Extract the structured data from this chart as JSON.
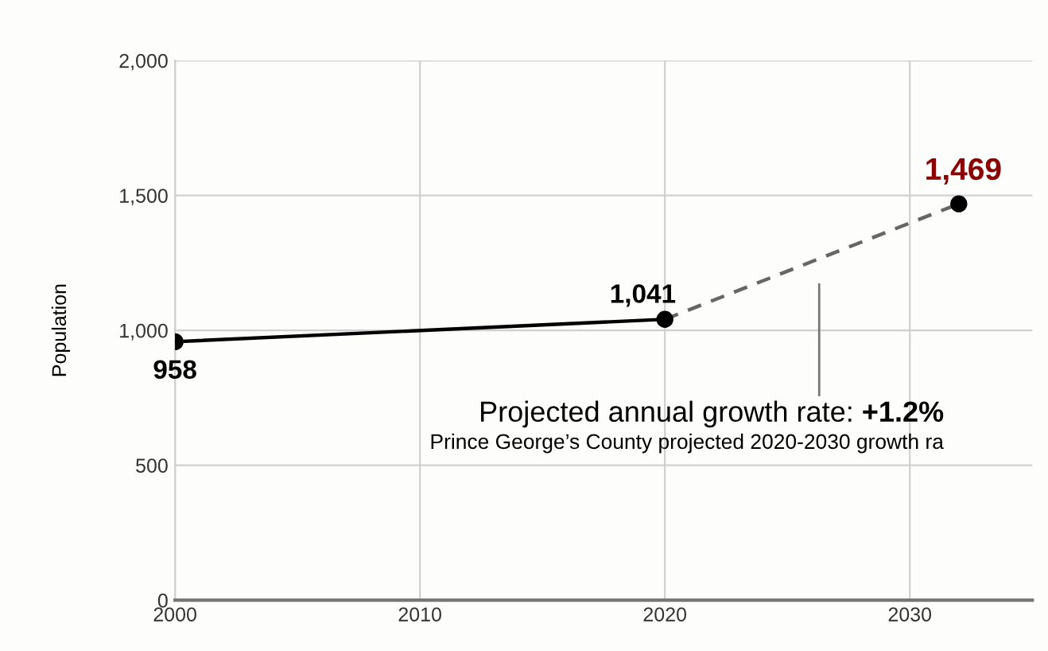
{
  "chart_data": {
    "type": "line",
    "ylabel": "Population",
    "xlim": [
      2000,
      2035
    ],
    "xticks": [
      2000,
      2010,
      2020,
      2030
    ],
    "ylim": [
      0,
      2000
    ],
    "yticks": [
      0,
      {
        "value": 500,
        "label": "500"
      },
      {
        "value": 1000,
        "label": "1,000"
      },
      {
        "value": 1500,
        "label": "1,500"
      },
      {
        "value": 2000,
        "label": "2,000"
      }
    ],
    "grid": true,
    "series": [
      {
        "x": [
          2000,
          2020
        ],
        "values": [
          958,
          1041
        ],
        "color": "#000000",
        "line_style": "solid",
        "marker": "none"
      },
      {
        "x": [
          2020,
          2032
        ],
        "values": [
          1041,
          1469
        ],
        "color": "#666666",
        "line_style": "dashed",
        "marker": "none"
      },
      {
        "type": "scatter",
        "x": [
          2000,
          2020,
          2032
        ],
        "values": [
          958,
          1041,
          1469
        ],
        "color": "#000000",
        "marker": "circle",
        "value_labels": [
          "958",
          "1,041",
          "1,469"
        ]
      }
    ],
    "annotations": [
      "Projected annual growth rate: ",
      "+1.2%",
      "Prince George’s County projected 2020-2030 growth ra"
    ]
  }
}
